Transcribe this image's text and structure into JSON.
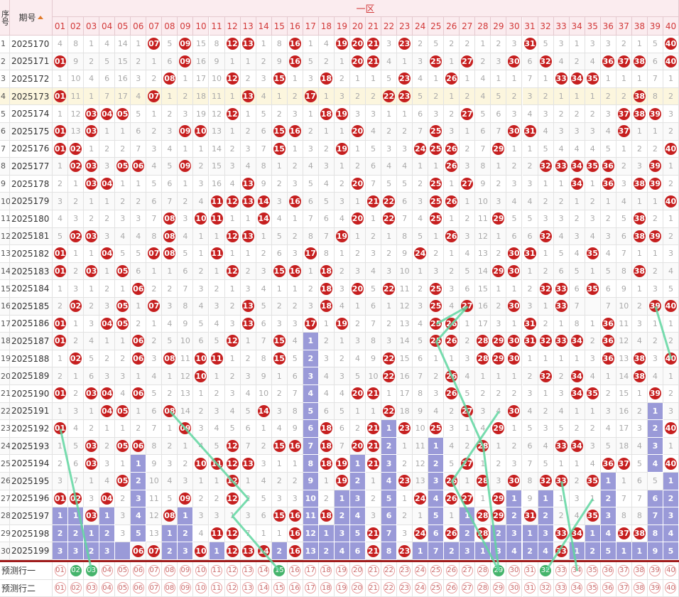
{
  "header": {
    "col_index_label": "序号",
    "col_period_label": "期号",
    "zone_label": "一区",
    "numbers": [
      "01",
      "02",
      "03",
      "04",
      "05",
      "06",
      "07",
      "08",
      "09",
      "10",
      "11",
      "12",
      "13",
      "14",
      "15",
      "16",
      "17",
      "18",
      "19",
      "20",
      "21",
      "22",
      "23",
      "24",
      "25",
      "26",
      "27",
      "28",
      "29",
      "30",
      "31",
      "32",
      "33",
      "34",
      "35",
      "36",
      "37",
      "38",
      "39",
      "40"
    ]
  },
  "rows": [
    {
      "index": "1",
      "period": "2025170",
      "hits": [
        7,
        9,
        12,
        13,
        16,
        19,
        20,
        21,
        23,
        31,
        40
      ],
      "miss": "4 8 1 4 14 1 - 5 - 15 8 - - 1 8 - 1 4 - - - 3 - 2 5 2 2 1 2 3 - 5 3 1 3 3 2 1 5 -"
    },
    {
      "index": "2",
      "period": "2025171",
      "hits": [
        1,
        9,
        16,
        20,
        21,
        25,
        27,
        30,
        32,
        36,
        37,
        38,
        40
      ],
      "miss": "- 9 2 5 15 2 1 6 - 16 9 1 1 2 9 - 5 2 1 - - 4 1 3 - 1 - 2 3 - 6 - 4 2 4 - - - 6 -"
    },
    {
      "index": "3",
      "period": "2025172",
      "hits": [
        8,
        12,
        15,
        18,
        23,
        26,
        33,
        34,
        35
      ],
      "miss": "1 10 4 6 16 3 2 - 1 17 10 - 2 3 - 1 3 - 2 1 1 5 - 4 1 - 1 4 1 1 7 1 - - - 1 1 1 7 1"
    },
    {
      "index": "4",
      "period": "2025173",
      "hits": [
        1,
        7,
        13,
        17,
        22,
        23,
        38
      ],
      "hl": true,
      "miss": "- 11 1 7 17 4 - 1 2 18 11 1 - 4 1 2 - 1 3 2 2 - - 5 2 1 2 4 5 2 3 2 1 1 1 2 2 - 8 2"
    },
    {
      "index": "5",
      "period": "2025174",
      "hits": [
        3,
        4,
        5,
        12,
        18,
        19,
        27,
        37,
        38,
        39
      ],
      "miss": "1 12 - - - 5 1 2 3 19 12 - 1 5 2 3 1 - - 3 3 1 1 6 3 2 - 5 6 3 4 3 2 2 2 3 - - - 3"
    },
    {
      "index": "6",
      "period": "2025175",
      "hits": [
        1,
        3,
        9,
        10,
        15,
        16,
        20,
        25,
        30,
        31,
        37
      ],
      "miss": "- 13 - 1 1 6 2 3 - - 13 1 2 6 - - 2 1 1 - 4 2 2 7 - 3 1 6 7 - - 4 3 3 3 4 - 1 1 2"
    },
    {
      "index": "7",
      "period": "2025176",
      "hits": [
        1,
        2,
        15,
        19,
        24,
        25,
        26,
        29,
        40
      ],
      "miss": "- - 1 2 2 7 3 4 1 1 14 2 3 7 - 1 3 2 - 1 5 3 3 - - - 2 7 - 1 1 5 4 4 4 5 1 2 2 -"
    },
    {
      "index": "8",
      "period": "2025177",
      "hits": [
        2,
        3,
        5,
        6,
        9,
        26,
        32,
        33,
        34,
        35,
        36,
        39
      ],
      "miss": "1 - - 3 - - 4 5 - 2 15 3 4 8 1 2 4 3 1 2 6 4 4 1 1 - 3 8 1 2 2 - - - - - 2 3 - 1"
    },
    {
      "index": "9",
      "period": "2025178",
      "hits": [
        3,
        4,
        13,
        20,
        25,
        27,
        34,
        36,
        38,
        39
      ],
      "miss": "2 1 - - 1 1 5 6 1 3 16 4 - 9 2 3 5 4 2 - 7 5 5 2 - 1 - 9 2 3 3 1 1 - 1 - 3 - - 2"
    },
    {
      "index": "10",
      "period": "2025179",
      "hits": [
        11,
        12,
        13,
        14,
        16,
        21,
        22,
        25,
        26,
        40
      ],
      "miss": "3 2 1 1 2 2 6 7 2 4 - - - - 3 - 6 5 3 1 - - 6 3 - - 1 10 3 4 4 2 2 1 2 1 4 1 1 -"
    },
    {
      "index": "11",
      "period": "2025180",
      "hits": [
        8,
        10,
        11,
        14,
        20,
        22,
        25,
        29,
        38
      ],
      "miss": "4 3 2 2 3 3 7 - 3 - - 1 1 - 4 1 7 6 4 - 1 - 7 4 - 1 2 11 - 5 5 3 3 2 3 2 5 - 2 1"
    },
    {
      "index": "12",
      "period": "2025181",
      "hits": [
        2,
        3,
        8,
        12,
        13,
        19,
        26,
        32,
        38,
        39
      ],
      "miss": "5 - - 3 4 4 8 - 4 1 1 - - 1 5 2 8 7 - 1 2 1 8 5 1 - 3 12 1 6 6 - 4 3 4 3 6 - - 2"
    },
    {
      "index": "13",
      "period": "2025182",
      "hits": [
        1,
        4,
        7,
        8,
        11,
        17,
        24,
        30,
        31,
        35
      ],
      "miss": "- 1 1 - 5 5 - - 5 1 - 1 1 2 6 3 - 8 1 2 3 2 9 - 2 1 4 13 2 - - 1 5 4 - 4 7 1 1 3"
    },
    {
      "index": "14",
      "period": "2025183",
      "hits": [
        1,
        3,
        5,
        12,
        15,
        16,
        18,
        29,
        30,
        38
      ],
      "miss": "- 2 - 1 - 6 1 1 6 2 1 - 2 3 - - 1 - 2 3 4 3 10 1 3 2 5 14 - - 1 2 6 5 1 5 8 - 2 4"
    },
    {
      "index": "15",
      "period": "2025184",
      "hits": [
        6,
        18,
        20,
        22,
        25,
        32,
        33,
        35
      ],
      "miss": "1 3 1 2 1 - 2 2 7 3 2 1 3 4 1 1 2 - 3 - 5 - 11 2 - 3 6 15 1 1 2 - - 6 - 6 9 1 3 5"
    },
    {
      "index": "16",
      "period": "2025185",
      "hits": [
        2,
        5,
        7,
        13,
        18,
        25,
        27,
        30,
        33,
        39,
        40
      ],
      "miss": "2 - 2 3 - 1 - 3 8 4 3 2 - 5 2 2 3 - 4 1 6 1 12 3 - 4 - 16 2 - 3 1 - 7 - 7 10 2 - -"
    },
    {
      "index": "17",
      "period": "2025186",
      "hits": [
        1,
        4,
        5,
        13,
        17,
        19,
        25,
        26,
        31,
        36
      ],
      "miss": "- 1 3 - - 2 1 4 9 5 4 3 - 6 3 3 - 1 - 2 7 2 13 4 - - 1 17 3 1 - 2 1 8 1 - 11 3 1 1"
    },
    {
      "index": "18",
      "period": "2025187",
      "hits": [
        1,
        6,
        12,
        15,
        25,
        26,
        28,
        29,
        30,
        31,
        32,
        33,
        34,
        36
      ],
      "bars": [
        17
      ],
      "miss": "- 2 4 1 1 - 2 5 10 6 5 - 1 7 - 4 1 2 1 3 8 3 14 5 - - 2 - - - - - - - 2 - 12 4 2 2"
    },
    {
      "index": "19",
      "period": "2025188",
      "hits": [
        2,
        6,
        8,
        10,
        11,
        15,
        22,
        28,
        29,
        30,
        36,
        38,
        40
      ],
      "bars": [
        17
      ],
      "miss": "1 - 5 2 2 - 3 - 11 - - 1 2 8 - 5 2 3 2 4 9 - 15 6 1 1 3 - - - 1 1 1 1 3 - 13 - 3 -"
    },
    {
      "index": "20",
      "period": "2025189",
      "hits": [
        10,
        22,
        26,
        32,
        34,
        38
      ],
      "bars": [
        17
      ],
      "miss": "2 1 6 3 3 1 4 1 12 - 1 2 3 9 1 6 3 4 3 5 10 - 16 7 2 - 4 1 1 1 2 - 2 - 4 1 14 - 4 1"
    },
    {
      "index": "21",
      "period": "2025190",
      "hits": [
        1,
        3,
        4,
        6,
        20,
        21,
        26,
        34,
        35,
        39
      ],
      "bars": [
        17
      ],
      "miss": "- 2 - - 4 - 5 2 13 1 2 3 4 10 2 7 4 4 4 - - 1 17 8 3 - 5 2 2 2 3 1 3 - - 2 15 1 - 2"
    },
    {
      "index": "22",
      "period": "2025191",
      "hits": [
        4,
        5,
        8,
        14,
        22,
        27,
        30
      ],
      "bars": [
        17,
        39
      ],
      "miss": "1 3 1 - - 1 6 - 14 2 3 4 5 - 3 8 5 6 5 1 1 - 18 9 4 2 - 3 4 - 4 2 4 1 1 3 16 2 1 3"
    },
    {
      "index": "23",
      "period": "2025192",
      "hits": [
        1,
        9,
        18,
        21,
        23,
        25,
        29,
        40
      ],
      "bars": [
        17,
        22,
        39
      ],
      "miss": "- 4 2 1 1 2 7 1 - 3 4 5 6 1 4 9 6 - 6 2 - 1 - 10 - 3 1 4 - 1 5 3 5 2 2 4 17 3 2 -"
    },
    {
      "index": "24",
      "period": "2025193",
      "hits": [
        3,
        5,
        6,
        12,
        15,
        16,
        18,
        20,
        21,
        28,
        33,
        34
      ],
      "bars": [
        17,
        22,
        25,
        39
      ],
      "miss": "1 5 - 2 - - 8 2 1 4 5 - 7 2 - - 7 - 7 - - 2 1 11 1 4 2 - 1 2 6 4 - - 3 5 18 4 3 1"
    },
    {
      "index": "25",
      "period": "2025194",
      "hits": [
        3,
        10,
        11,
        12,
        13,
        18,
        19,
        21,
        27,
        36,
        37,
        40
      ],
      "bars": [
        6,
        17,
        20,
        22,
        25,
        39
      ],
      "miss": "2 6 - 3 1 1 9 3 2 - - - - 3 1 1 8 - - 1 - 3 2 12 2 5 - 1 2 3 7 5 1 1 4 - - 5 4 -"
    },
    {
      "index": "26",
      "period": "2025195",
      "hits": [
        5,
        12,
        19,
        23,
        26,
        28,
        30,
        32,
        33,
        35
      ],
      "bars": [
        6,
        17,
        20,
        22,
        25,
        36,
        40
      ],
      "miss": "3 7 1 4 - 2 10 4 3 1 1 - 1 4 2 2 9 1 - 2 1 4 - 13 3 - 1 - 3 - 8 - - 2 - 1 1 6 5 1"
    },
    {
      "index": "27",
      "period": "2025196",
      "hits": [
        1,
        2,
        4,
        9,
        12,
        24,
        26,
        27,
        29
      ],
      "bars": [
        6,
        17,
        19,
        20,
        22,
        25,
        30,
        32,
        36,
        39,
        40
      ],
      "miss": "- - 3 - 2 3 11 5 - 2 2 - 2 5 3 3 10 2 1 3 2 5 1 - 4 - - 1 - 1 9 1 1 3 1 2 7 7 6 2"
    },
    {
      "index": "28",
      "period": "2025197",
      "hits": [
        3,
        8,
        15,
        16,
        18,
        28,
        29,
        31,
        35
      ],
      "bars": [
        1,
        2,
        4,
        6,
        9,
        17,
        19,
        20,
        22,
        25,
        27,
        30,
        32,
        36,
        39,
        40
      ],
      "miss": "1 1 - 1 3 4 12 - 1 3 3 1 3 6 - - 11 - 2 4 3 6 2 1 5 1 1 - - 2 - 2 2 4 - 3 8 8 7 3"
    },
    {
      "index": "29",
      "period": "2025198",
      "hits": [
        11,
        12,
        16,
        21,
        24,
        26,
        28,
        33,
        34,
        37,
        38
      ],
      "bars": [
        1,
        2,
        3,
        4,
        6,
        8,
        9,
        17,
        18,
        19,
        20,
        22,
        25,
        27,
        29,
        30,
        31,
        32,
        35,
        36,
        39,
        40
      ],
      "miss": "2 2 1 2 3 5 13 1 2 4 - - 7 1 1 - 12 1 3 5 - 7 3 - 6 - 2 - 2 3 1 3 - - 1 4 - - 8 4"
    },
    {
      "index": "30",
      "period": "2025199",
      "hits": [
        6,
        7,
        10,
        12,
        13,
        14,
        16,
        21,
        23,
        33
      ],
      "bars": [
        1,
        2,
        3,
        4,
        5,
        8,
        9,
        11,
        15,
        17,
        18,
        19,
        20,
        22,
        24,
        25,
        26,
        27,
        28,
        29,
        30,
        31,
        32,
        34,
        35,
        36,
        37,
        38,
        39,
        40
      ],
      "miss": "3 3 2 3 - - - 2 3 - 1 - - - 2 - 13 2 4 6 - 8 - 1 7 2 3 1 3 4 2 4 - 1 2 5 1 1 9 5"
    }
  ],
  "predict": [
    {
      "label": "预测行一",
      "green": [
        2,
        3,
        15,
        29,
        32
      ]
    },
    {
      "label": "预测行二",
      "green": []
    }
  ],
  "colors": {
    "ball": "#c61f1f",
    "bar": "#9a9ad8",
    "line": "#5fd6a0",
    "header_bg": "#fbecef",
    "highlight": "#fcf6de"
  }
}
